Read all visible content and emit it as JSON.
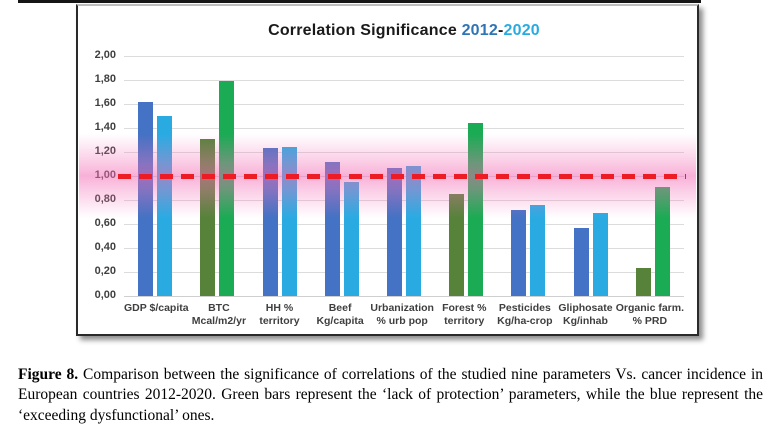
{
  "figure": {
    "title": {
      "main": "Correlation Significance ",
      "year1": "2012",
      "separator": "-",
      "year2": "2020",
      "year1_color": "#2E75B6",
      "year2_color": "#29ABE2"
    },
    "caption": {
      "label": "Figure 8.",
      "text": " Comparison between the significance of correlations of the studied nine parameters Vs. cancer incidence in European countries 2012-2020. Green bars represent the ‘lack of protection’ parameters, while the blue represent the ‘exceeding dysfunctional’ ones."
    }
  },
  "chart_data": {
    "type": "bar",
    "title": "Correlation Significance 2012-2020",
    "xlabel": "",
    "ylabel": "",
    "ylim": [
      0,
      2.0
    ],
    "ytick_step": 0.2,
    "ytick_labels": [
      "0,00",
      "0,20",
      "0,40",
      "0,60",
      "0,80",
      "1,00",
      "1,20",
      "1,40",
      "1,60",
      "1,80",
      "2,00"
    ],
    "grid": true,
    "legend": "none",
    "categories": [
      {
        "lines": [
          "GDP $/capita"
        ],
        "group": "blue"
      },
      {
        "lines": [
          "BTC",
          "Mcal/m2/yr"
        ],
        "group": "green"
      },
      {
        "lines": [
          "HH %",
          "territory"
        ],
        "group": "blue"
      },
      {
        "lines": [
          "Beef",
          "Kg/capita"
        ],
        "group": "blue"
      },
      {
        "lines": [
          "Urbanization",
          "% urb pop"
        ],
        "group": "blue"
      },
      {
        "lines": [
          "Forest %",
          "territory"
        ],
        "group": "green"
      },
      {
        "lines": [
          "Pesticides",
          "Kg/ha-crop"
        ],
        "group": "blue"
      },
      {
        "lines": [
          "Gliphosate",
          "Kg/inhab"
        ],
        "group": "blue"
      },
      {
        "lines": [
          "Organic farm.",
          "% PRD"
        ],
        "group": "green"
      }
    ],
    "series": [
      {
        "name": "2012",
        "values": [
          1.62,
          1.31,
          1.23,
          1.12,
          1.07,
          0.85,
          0.72,
          0.57,
          0.23
        ]
      },
      {
        "name": "2020",
        "values": [
          1.5,
          1.79,
          1.24,
          0.95,
          1.08,
          1.44,
          0.76,
          0.69,
          0.91
        ]
      }
    ],
    "colors": {
      "blue_2012": "#4472C4",
      "blue_2020": "#29ABE2",
      "green_2012": "#56823A",
      "green_2020": "#1BAB54"
    },
    "reference_line": {
      "value": 1.0,
      "color": "#ED1C24",
      "style": "dashed",
      "glow_color": "#F268B2"
    },
    "legend_note": "Green bars = lack of protection parameters; blue bars = exceeding dysfunctional parameters"
  }
}
